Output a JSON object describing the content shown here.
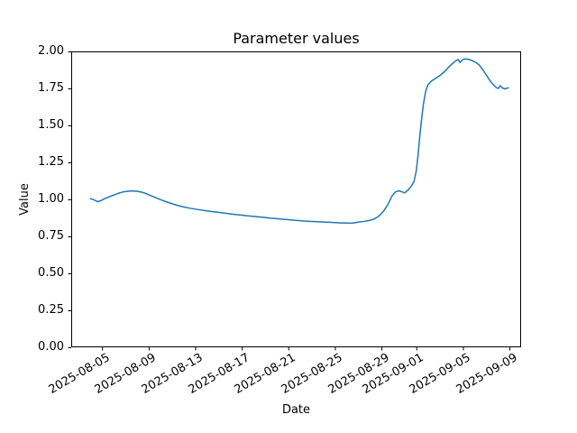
{
  "figure": {
    "background_color": "#ffffff"
  },
  "chart_data": {
    "type": "line",
    "title": "Parameter values",
    "xlabel": "Date",
    "ylabel": "Value",
    "grid": false,
    "legend_position": "none",
    "line_color": "#1f77b4",
    "line_width": 1.5,
    "axes_color": "#000000",
    "ylim": [
      0.0,
      2.0
    ],
    "y_ticks": [
      {
        "value": 0.0,
        "label": "0.00"
      },
      {
        "value": 0.25,
        "label": "0.25"
      },
      {
        "value": 0.5,
        "label": "0.50"
      },
      {
        "value": 0.75,
        "label": "0.75"
      },
      {
        "value": 1.0,
        "label": "1.00"
      },
      {
        "value": 1.25,
        "label": "1.25"
      },
      {
        "value": 1.5,
        "label": "1.50"
      },
      {
        "value": 1.75,
        "label": "1.75"
      },
      {
        "value": 2.0,
        "label": "2.00"
      }
    ],
    "x_unit": "days since 2025-08-04",
    "xlim": [
      -1.65,
      37.0
    ],
    "x_tick_rotation_deg": 30,
    "x_ticks": [
      {
        "offset": 1,
        "label": "2025-08-05"
      },
      {
        "offset": 5,
        "label": "2025-08-09"
      },
      {
        "offset": 9,
        "label": "2025-08-13"
      },
      {
        "offset": 13,
        "label": "2025-08-17"
      },
      {
        "offset": 17,
        "label": "2025-08-21"
      },
      {
        "offset": 21,
        "label": "2025-08-25"
      },
      {
        "offset": 25,
        "label": "2025-08-29"
      },
      {
        "offset": 28,
        "label": "2025-09-01"
      },
      {
        "offset": 32,
        "label": "2025-09-05"
      },
      {
        "offset": 36,
        "label": "2025-09-09"
      }
    ],
    "points": [
      [
        0.0,
        1.005
      ],
      [
        0.3,
        0.997
      ],
      [
        0.6,
        0.984
      ],
      [
        0.9,
        0.991
      ],
      [
        1.2,
        1.004
      ],
      [
        1.6,
        1.017
      ],
      [
        2.0,
        1.029
      ],
      [
        2.4,
        1.041
      ],
      [
        2.8,
        1.05
      ],
      [
        3.2,
        1.055
      ],
      [
        3.6,
        1.057
      ],
      [
        4.0,
        1.055
      ],
      [
        4.4,
        1.049
      ],
      [
        4.8,
        1.038
      ],
      [
        5.2,
        1.025
      ],
      [
        5.6,
        1.012
      ],
      [
        6.0,
        0.999
      ],
      [
        6.5,
        0.984
      ],
      [
        7.0,
        0.971
      ],
      [
        7.5,
        0.959
      ],
      [
        8.0,
        0.949
      ],
      [
        8.5,
        0.941
      ],
      [
        9.0,
        0.934
      ],
      [
        9.5,
        0.928
      ],
      [
        10.0,
        0.922
      ],
      [
        10.5,
        0.917
      ],
      [
        11.0,
        0.912
      ],
      [
        11.5,
        0.907
      ],
      [
        12.0,
        0.902
      ],
      [
        12.5,
        0.897
      ],
      [
        13.0,
        0.893
      ],
      [
        13.5,
        0.889
      ],
      [
        14.0,
        0.885
      ],
      [
        14.5,
        0.881
      ],
      [
        15.0,
        0.877
      ],
      [
        15.5,
        0.873
      ],
      [
        16.0,
        0.87
      ],
      [
        16.5,
        0.866
      ],
      [
        17.0,
        0.863
      ],
      [
        17.5,
        0.859
      ],
      [
        18.0,
        0.856
      ],
      [
        18.5,
        0.853
      ],
      [
        19.0,
        0.851
      ],
      [
        19.5,
        0.849
      ],
      [
        20.0,
        0.847
      ],
      [
        20.5,
        0.845
      ],
      [
        21.0,
        0.843
      ],
      [
        21.5,
        0.841
      ],
      [
        22.0,
        0.84
      ],
      [
        22.5,
        0.839
      ],
      [
        23.0,
        0.846
      ],
      [
        23.5,
        0.851
      ],
      [
        24.0,
        0.858
      ],
      [
        24.4,
        0.868
      ],
      [
        24.8,
        0.888
      ],
      [
        25.2,
        0.922
      ],
      [
        25.6,
        0.972
      ],
      [
        25.9,
        1.022
      ],
      [
        26.2,
        1.05
      ],
      [
        26.5,
        1.058
      ],
      [
        26.8,
        1.05
      ],
      [
        27.0,
        1.044
      ],
      [
        27.3,
        1.064
      ],
      [
        27.6,
        1.093
      ],
      [
        27.8,
        1.122
      ],
      [
        28.0,
        1.195
      ],
      [
        28.15,
        1.3
      ],
      [
        28.3,
        1.43
      ],
      [
        28.45,
        1.54
      ],
      [
        28.6,
        1.64
      ],
      [
        28.8,
        1.73
      ],
      [
        29.0,
        1.775
      ],
      [
        29.3,
        1.8
      ],
      [
        29.7,
        1.82
      ],
      [
        30.0,
        1.836
      ],
      [
        30.4,
        1.862
      ],
      [
        30.8,
        1.896
      ],
      [
        31.1,
        1.918
      ],
      [
        31.4,
        1.937
      ],
      [
        31.6,
        1.946
      ],
      [
        31.75,
        1.925
      ],
      [
        31.95,
        1.943
      ],
      [
        32.2,
        1.95
      ],
      [
        32.5,
        1.946
      ],
      [
        32.8,
        1.938
      ],
      [
        33.1,
        1.926
      ],
      [
        33.4,
        1.908
      ],
      [
        33.7,
        1.878
      ],
      [
        34.0,
        1.842
      ],
      [
        34.3,
        1.805
      ],
      [
        34.6,
        1.776
      ],
      [
        34.85,
        1.756
      ],
      [
        35.05,
        1.75
      ],
      [
        35.2,
        1.768
      ],
      [
        35.4,
        1.753
      ],
      [
        35.6,
        1.747
      ],
      [
        35.9,
        1.754
      ]
    ]
  }
}
